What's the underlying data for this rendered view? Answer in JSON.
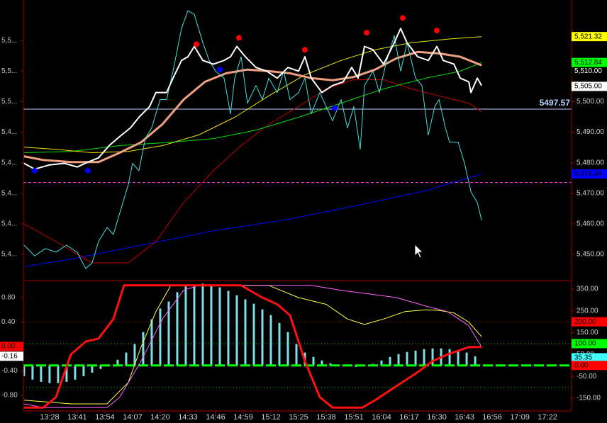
{
  "chart_data": [
    {
      "type": "line",
      "xlim": [
        795.7,
        1053.3
      ],
      "ylim": [
        5441.4,
        5533.3
      ],
      "yticks": [
        {
          "value": 5520,
          "label": "5,5..."
        },
        {
          "value": 5510,
          "label": "5,5..."
        },
        {
          "value": 5500,
          "label": "5,5..."
        },
        {
          "value": 5490,
          "label": "5,4..."
        },
        {
          "value": 5480,
          "label": "5,4..."
        },
        {
          "value": 5470,
          "label": "5,4..."
        },
        {
          "value": 5460,
          "label": "5,4..."
        },
        {
          "value": 5450,
          "label": "5,4..."
        }
      ],
      "y2lim": [
        5441.4,
        5533.3
      ],
      "y2ticks": [
        {
          "value": 5500,
          "label": "5,500.00"
        },
        {
          "value": 5490,
          "label": "5,490.00"
        },
        {
          "value": 5480,
          "label": "5,480.00"
        },
        {
          "value": 5470,
          "label": "5,470.00"
        },
        {
          "value": 5460,
          "label": "5,460.00"
        },
        {
          "value": 5450,
          "label": "5,450.00"
        }
      ],
      "ref_lines": [
        {
          "value": 5497.57,
          "label": "5497.57",
          "color": "#b0d0ff",
          "style": "solid"
        },
        {
          "value": 5473.5,
          "color": "#ff40ff",
          "style": "dashed"
        }
      ],
      "series": [
        {
          "color": "#0000ff",
          "line_width": 1,
          "x": [
            796,
            818,
            851,
            885,
            918,
            951,
            985,
            1011
          ],
          "values": [
            5446.0,
            5448.4,
            5453.0,
            5457.7,
            5461.2,
            5465.8,
            5470.9,
            5476.3
          ]
        },
        {
          "color": "#c00000",
          "line_width": 1,
          "x": [
            796,
            811,
            828,
            845,
            858,
            871,
            885,
            898,
            911,
            925,
            938,
            951,
            965,
            978,
            991,
            1005,
            1011
          ],
          "values": [
            5460.0,
            5454.2,
            5447.2,
            5447.2,
            5454.2,
            5467.0,
            5477.4,
            5485.6,
            5492.6,
            5498.4,
            5504.2,
            5507.2,
            5507.2,
            5504.2,
            5501.9,
            5499.5,
            5496.7
          ]
        },
        {
          "color": "#00e000",
          "line_width": 1,
          "x": [
            796,
            818,
            841,
            865,
            885,
            905,
            925,
            945,
            965,
            985,
            1001,
            1011
          ],
          "values": [
            5483.3,
            5483.7,
            5485.6,
            5486.7,
            5487.9,
            5490.7,
            5494.9,
            5499.5,
            5504.2,
            5507.7,
            5510.0,
            5512.8
          ]
        },
        {
          "color": "#e8e800",
          "line_width": 1,
          "x": [
            796,
            811,
            828,
            845,
            861,
            878,
            895,
            911,
            928,
            945,
            961,
            978,
            995,
            1011
          ],
          "values": [
            5485.1,
            5484.4,
            5483.3,
            5483.7,
            5485.6,
            5489.1,
            5494.9,
            5501.9,
            5508.8,
            5513.5,
            5517.0,
            5519.3,
            5520.5,
            5521.3
          ]
        },
        {
          "color": "#f0a080",
          "line_width": 3,
          "x": [
            796,
            805,
            818,
            831,
            841,
            851,
            861,
            871,
            881,
            891,
            901,
            911,
            921,
            931,
            941,
            951,
            961,
            971,
            981,
            991,
            1001,
            1011
          ],
          "values": [
            5482.1,
            5480.9,
            5480.2,
            5480.2,
            5483.3,
            5486.7,
            5492.6,
            5500.7,
            5506.5,
            5509.3,
            5510.5,
            5510.0,
            5509.3,
            5507.7,
            5507.0,
            5508.1,
            5510.5,
            5514.2,
            5516.3,
            5515.8,
            5514.7,
            5511.9
          ]
        },
        {
          "color": "#40e0e0",
          "line_width": 1,
          "x": [
            796,
            801,
            806,
            811,
            816,
            821,
            825,
            828,
            831,
            835,
            838,
            841,
            845,
            847,
            850,
            853,
            856,
            860,
            863,
            866,
            870,
            873,
            876,
            880,
            883,
            886,
            890,
            893,
            895,
            898,
            901,
            905,
            908,
            911,
            915,
            918,
            921,
            925,
            928,
            931,
            935,
            938,
            941,
            945,
            948,
            951,
            954,
            956,
            960,
            963,
            966,
            970,
            973,
            976,
            980,
            983,
            986,
            989,
            991,
            994,
            996,
            1000,
            1003,
            1006,
            1009,
            1011
          ],
          "values": [
            5453.0,
            5449.5,
            5451.9,
            5450.7,
            5453.0,
            5450.7,
            5445.3,
            5447.2,
            5454.2,
            5458.8,
            5456.5,
            5463.5,
            5472.8,
            5479.8,
            5477.4,
            5487.9,
            5491.4,
            5500.7,
            5500.7,
            5510.0,
            5524.0,
            5529.8,
            5528.6,
            5519.3,
            5513.5,
            5510.0,
            5507.7,
            5496.0,
            5507.7,
            5514.7,
            5499.5,
            5505.3,
            5500.7,
            5507.7,
            5503.0,
            5510.0,
            5500.7,
            5503.0,
            5507.7,
            5496.0,
            5503.0,
            5498.4,
            5493.7,
            5500.7,
            5491.4,
            5498.4,
            5484.4,
            5505.3,
            5510.0,
            5503.0,
            5512.3,
            5521.6,
            5510.0,
            5519.3,
            5507.7,
            5505.3,
            5489.1,
            5498.4,
            5500.7,
            5491.4,
            5486.7,
            5486.7,
            5479.8,
            5470.5,
            5467.0,
            5461.2
          ]
        },
        {
          "color": "#ffffff",
          "line_width": 2,
          "x": [
            796,
            801,
            808,
            815,
            821,
            826,
            831,
            836,
            841,
            846,
            850,
            855,
            858,
            863,
            866,
            870,
            873,
            876,
            880,
            885,
            890,
            893,
            896,
            900,
            905,
            910,
            915,
            920,
            925,
            928,
            931,
            936,
            941,
            946,
            950,
            953,
            956,
            960,
            965,
            970,
            973,
            976,
            981,
            986,
            990,
            993,
            998,
            1001,
            1005,
            1006,
            1009,
            1011
          ],
          "values": [
            5479.8,
            5477.9,
            5479.3,
            5479.8,
            5478.6,
            5480.2,
            5481.6,
            5485.6,
            5488.6,
            5491.4,
            5494.9,
            5498.4,
            5503.0,
            5503.0,
            5507.7,
            5513.5,
            5514.7,
            5518.1,
            5513.5,
            5512.3,
            5513.5,
            5514.7,
            5518.1,
            5514.7,
            5511.2,
            5510.0,
            5507.7,
            5511.2,
            5510.0,
            5514.7,
            5507.7,
            5503.0,
            5505.3,
            5506.5,
            5511.2,
            5507.7,
            5518.1,
            5517.0,
            5512.3,
            5519.3,
            5524.0,
            5519.3,
            5514.7,
            5513.5,
            5518.1,
            5513.5,
            5512.3,
            5507.7,
            5506.5,
            5503.0,
            5507.7,
            5505.3
          ]
        }
      ],
      "markers": [
        {
          "color": "#ff0000",
          "x": [
            877,
            897,
            928,
            957,
            974,
            990
          ],
          "values": [
            5518.8,
            5520.9,
            5517.0,
            5522.6,
            5527.4,
            5523.3
          ]
        },
        {
          "color": "#0000ff",
          "x": [
            801,
            826,
            888,
            942
          ],
          "values": [
            5477.4,
            5477.4,
            5510.5,
            5497.9
          ]
        }
      ],
      "flags": [
        {
          "value": 5510.0,
          "label": "5,510.00",
          "color": "#000000",
          "side": "right",
          "axis": "y2"
        },
        {
          "value": 5521.32,
          "label": "5,521.32",
          "color": "#ffff00",
          "side": "right",
          "axis": "y2"
        },
        {
          "value": 5512.84,
          "label": "5,512.84",
          "color": "#00ff00",
          "side": "right",
          "axis": "y2"
        },
        {
          "value": 5505.0,
          "label": "5,505.00",
          "color": "#ffffff",
          "side": "right",
          "axis": "y2"
        },
        {
          "value": 5476.34,
          "label": "5,476.34",
          "color": "#0000ff",
          "side": "right",
          "axis": "y2"
        }
      ]
    },
    {
      "type": "line",
      "xlim": [
        795.7,
        1053.3
      ],
      "ylim": [
        -1.056,
        1.067
      ],
      "yticks": [
        {
          "value": 0.8,
          "label": "0.80"
        },
        {
          "value": 0.4,
          "label": "0.40"
        },
        {
          "value": -0.4,
          "label": "-0.40"
        },
        {
          "value": -0.8,
          "label": "-0.80"
        }
      ],
      "y2lim": [
        -208.6,
        385.8
      ],
      "y2ticks": [
        {
          "value": 350,
          "label": "350.00"
        },
        {
          "value": 250,
          "label": "250.00"
        },
        {
          "value": 150,
          "label": "150.00"
        },
        {
          "value": 50,
          "label": "50.00"
        },
        {
          "value": -50,
          "label": "-50.00"
        },
        {
          "value": -150,
          "label": "-150.00"
        }
      ],
      "xticks": [
        {
          "value": 808,
          "label": "13:28"
        },
        {
          "value": 821,
          "label": "13:41"
        },
        {
          "value": 834,
          "label": "13:54"
        },
        {
          "value": 847,
          "label": "14:07"
        },
        {
          "value": 860,
          "label": "14:20"
        },
        {
          "value": 873,
          "label": "14:33"
        },
        {
          "value": 886,
          "label": "14:46"
        },
        {
          "value": 899,
          "label": "14:59"
        },
        {
          "value": 912,
          "label": "15:12"
        },
        {
          "value": 925,
          "label": "15:25"
        },
        {
          "value": 938,
          "label": "15:38"
        },
        {
          "value": 951,
          "label": "15:51"
        },
        {
          "value": 964,
          "label": "16:04"
        },
        {
          "value": 977,
          "label": "16:17"
        },
        {
          "value": 990,
          "label": "16:30"
        },
        {
          "value": 1003,
          "label": "16:43"
        },
        {
          "value": 1016,
          "label": "16:56"
        },
        {
          "value": 1029,
          "label": "17:09"
        },
        {
          "value": 1042,
          "label": "17:22"
        }
      ],
      "levels": [
        {
          "value": 200,
          "color": "#c00000",
          "style": "dotted",
          "axis": "y2"
        },
        {
          "value": 100,
          "color": "#00c000",
          "style": "dotted",
          "axis": "y2"
        },
        {
          "value": -100,
          "color": "#00c000",
          "style": "dotted",
          "axis": "y2"
        }
      ],
      "bars": {
        "color": "#80dde6",
        "axis": "y2",
        "x": [
          796,
          800,
          804,
          808,
          812,
          816,
          820,
          824,
          828,
          832,
          836,
          840,
          844,
          848,
          852,
          856,
          860,
          864,
          868,
          872,
          876,
          880,
          884,
          888,
          892,
          896,
          900,
          904,
          908,
          912,
          916,
          920,
          924,
          928,
          932,
          936,
          940,
          944,
          948,
          952,
          956,
          960,
          964,
          968,
          972,
          976,
          980,
          984,
          988,
          992,
          996,
          1000,
          1004,
          1008
        ],
        "values": [
          -49,
          -65,
          -75,
          -81,
          -81,
          -75,
          -65,
          -49,
          -33,
          -16,
          3,
          26,
          59,
          98,
          153,
          212,
          261,
          293,
          336,
          362,
          371,
          375,
          368,
          358,
          342,
          322,
          303,
          283,
          257,
          231,
          195,
          153,
          98,
          59,
          39,
          23,
          10,
          0,
          -3,
          -7,
          -3,
          7,
          23,
          39,
          52,
          62,
          68,
          75,
          78,
          78,
          75,
          68,
          59,
          42
        ]
      },
      "zero_line": {
        "value": 0,
        "color": "#00ff00",
        "axis": "y2"
      },
      "series": [
        {
          "color": "#ffff40",
          "line_width": 1,
          "x": [
            796,
            818,
            835,
            845,
            851,
            858,
            865,
            911,
            925,
            938,
            948,
            956,
            965,
            975,
            985,
            991,
            998,
            1005,
            1011
          ],
          "values": [
            -0.88,
            -0.94,
            -0.94,
            -0.59,
            -0.01,
            0.57,
            1.0,
            1.0,
            0.8,
            0.69,
            0.45,
            0.36,
            0.45,
            0.57,
            0.6,
            0.59,
            0.55,
            0.4,
            0.16
          ]
        },
        {
          "color": "#ff60ff",
          "line_width": 1,
          "x": [
            796,
            805,
            835,
            841,
            851,
            861,
            871,
            878,
            931,
            945,
            958,
            971,
            985,
            995,
            1005,
            1011
          ],
          "values": [
            -0.94,
            -1.0,
            -1.0,
            -0.83,
            -0.24,
            0.45,
            0.92,
            1.0,
            1.0,
            0.92,
            0.86,
            0.8,
            0.66,
            0.57,
            0.34,
            -0.01
          ]
        },
        {
          "color": "#ff1010",
          "line_width": 3,
          "x": [
            796,
            805,
            811,
            818,
            825,
            831,
            838,
            843,
            851,
            898,
            908,
            915,
            921,
            928,
            935,
            941,
            955,
            961,
            971,
            981,
            988,
            995,
            1005,
            1011
          ],
          "values": [
            -1.0,
            -1.0,
            -0.83,
            -0.13,
            0.08,
            0.13,
            0.45,
            1.0,
            1.0,
            1.0,
            0.8,
            0.69,
            0.51,
            -0.24,
            -0.83,
            -1.0,
            -1.0,
            -0.88,
            -0.65,
            -0.42,
            -0.24,
            -0.13,
            -0.01,
            -0.01
          ]
        }
      ],
      "flags": [
        {
          "value": 200,
          "label": "200.00",
          "color": "#ff0000",
          "side": "right",
          "axis": "y2"
        },
        {
          "value": 100,
          "label": "100.00",
          "color": "#00ff00",
          "side": "right",
          "axis": "y2"
        },
        {
          "value": 35.35,
          "label": "35.35",
          "color": "#40ffff",
          "side": "right",
          "axis": "y2"
        },
        {
          "value": 0,
          "label": "0.00",
          "color": "#ff0000",
          "side": "right",
          "axis": "y2"
        },
        {
          "value": 0,
          "label": "0.00",
          "color": "#ff0000",
          "side": "left",
          "axis": "y"
        },
        {
          "value": -0.16,
          "label": "-0.16",
          "color": "#ffffff",
          "side": "left",
          "axis": "y"
        }
      ]
    }
  ]
}
